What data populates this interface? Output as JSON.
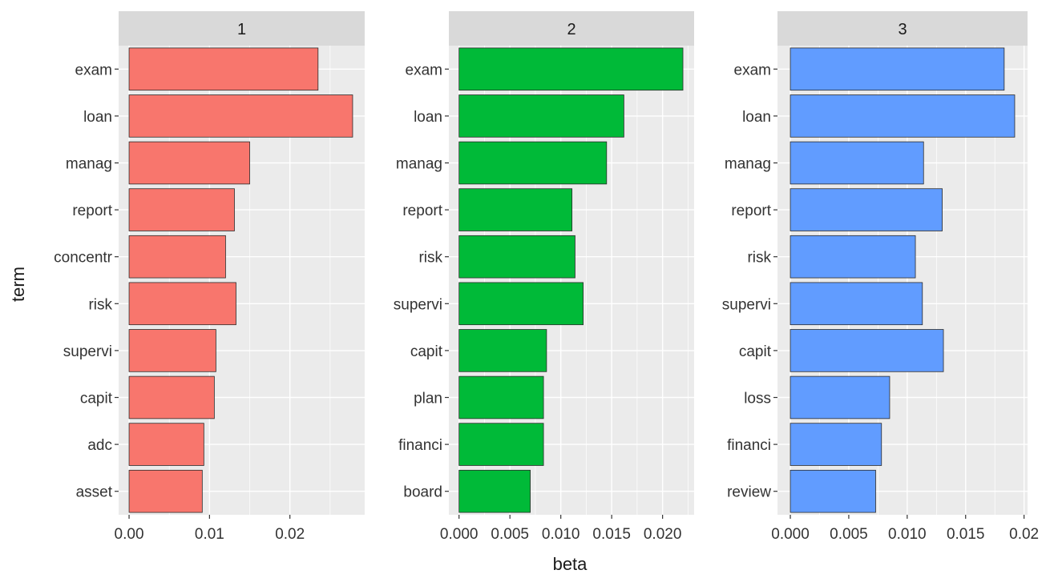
{
  "chart_data": {
    "type": "bar",
    "orientation": "horizontal",
    "xlabel": "beta",
    "ylabel": "term",
    "grid": true,
    "legend": "none",
    "panel_background": "#ebebeb",
    "strip_background": "#d9d9d9",
    "grid_color": "#ffffff",
    "bar_outline": "#2b2b2b",
    "facets": [
      {
        "strip": "1",
        "color": "#f8766d",
        "categories": [
          "exam",
          "loan",
          "manag",
          "report",
          "concentr",
          "risk",
          "supervi",
          "capit",
          "adc",
          "asset"
        ],
        "values": [
          0.0235,
          0.0278,
          0.015,
          0.0131,
          0.012,
          0.0133,
          0.0108,
          0.0106,
          0.0093,
          0.0091
        ],
        "xlim": [
          -0.0013,
          0.0293
        ],
        "ticks": [
          0.0,
          0.01,
          0.02
        ],
        "tick_labels": [
          "0.00",
          "0.01",
          "0.02"
        ]
      },
      {
        "strip": "2",
        "color": "#00ba38",
        "categories": [
          "exam",
          "loan",
          "manag",
          "report",
          "risk",
          "supervi",
          "capit",
          "plan",
          "financi",
          "board"
        ],
        "values": [
          0.022,
          0.0162,
          0.0145,
          0.0111,
          0.0114,
          0.0122,
          0.0086,
          0.0083,
          0.0083,
          0.007
        ],
        "xlim": [
          -0.001,
          0.0231
        ],
        "ticks": [
          0.0,
          0.005,
          0.01,
          0.015,
          0.02
        ],
        "tick_labels": [
          "0.000",
          "0.005",
          "0.010",
          "0.015",
          "0.020"
        ]
      },
      {
        "strip": "3",
        "color": "#619cff",
        "categories": [
          "exam",
          "loan",
          "manag",
          "report",
          "risk",
          "supervi",
          "capit",
          "loss",
          "financi",
          "review"
        ],
        "values": [
          0.0183,
          0.0192,
          0.0114,
          0.013,
          0.0107,
          0.0113,
          0.0131,
          0.0085,
          0.0078,
          0.0073
        ],
        "xlim": [
          -0.0011,
          0.0203
        ],
        "ticks": [
          0.0,
          0.005,
          0.01,
          0.015,
          0.02
        ],
        "tick_labels": [
          "0.000",
          "0.005",
          "0.010",
          "0.015",
          "0.02"
        ]
      }
    ]
  }
}
